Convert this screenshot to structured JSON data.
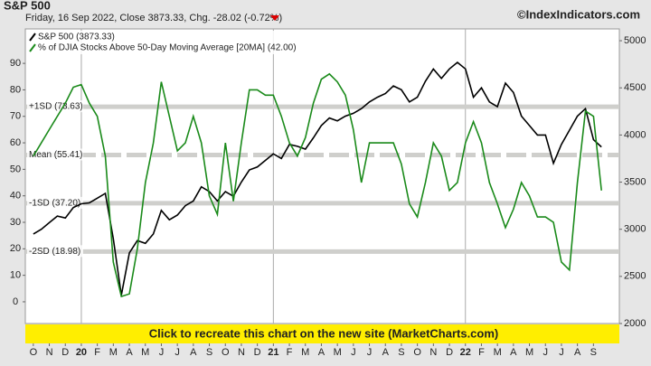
{
  "chart_data": {
    "type": "line",
    "title": "S&P 500",
    "subtitle": "Friday, 16 Sep 2022, Close 3873.33, Chg. -28.02 (-0.72%)",
    "credit": "©IndexIndicators.com",
    "banner": "Click to recreate this chart on the new site (MarketCharts.com)",
    "categories": [
      "O",
      null,
      "N",
      null,
      "D",
      null,
      "20",
      null,
      "F",
      null,
      "M",
      null,
      "A",
      null,
      "M",
      null,
      "J",
      null,
      "J",
      null,
      "A",
      null,
      "S",
      null,
      "O",
      null,
      "N",
      null,
      "D",
      null,
      "21",
      null,
      "F",
      null,
      "M",
      null,
      "A",
      null,
      "M",
      null,
      "J",
      null,
      "J",
      null,
      "A",
      null,
      "S",
      null,
      "O",
      null,
      "N",
      null,
      "D",
      null,
      "22",
      null,
      "F",
      null,
      "M",
      null,
      "A",
      null,
      "M",
      null,
      "J",
      null,
      "J",
      null,
      "A",
      null,
      "S",
      null
    ],
    "series": [
      {
        "name": "S&P 500 (3873.33)",
        "color": "#000000",
        "axis": "y2",
        "values": [
          2950,
          3000,
          3070,
          3140,
          3120,
          3230,
          3270,
          3280,
          3330,
          3380,
          2900,
          2300,
          2750,
          2880,
          2850,
          2950,
          3200,
          3100,
          3150,
          3250,
          3300,
          3450,
          3400,
          3300,
          3400,
          3350,
          3500,
          3630,
          3660,
          3730,
          3800,
          3750,
          3900,
          3880,
          3850,
          3970,
          4100,
          4180,
          4150,
          4200,
          4230,
          4280,
          4350,
          4400,
          4440,
          4520,
          4480,
          4350,
          4400,
          4570,
          4700,
          4600,
          4700,
          4770,
          4700,
          4400,
          4500,
          4350,
          4300,
          4550,
          4450,
          4200,
          4100,
          4000,
          4000,
          3700,
          3900,
          4050,
          4200,
          4280,
          3950,
          3873.33
        ]
      },
      {
        "name": "% of DJIA Stocks Above 50-Day Moving Average [20MA] (42.00)",
        "color": "#1a8a1a",
        "axis": "y",
        "values": [
          55,
          60,
          65,
          70,
          75,
          81,
          82,
          75,
          70,
          55,
          15,
          2,
          3,
          20,
          45,
          60,
          83,
          70,
          57,
          60,
          70,
          60,
          40,
          33,
          60,
          38,
          60,
          80,
          80,
          78,
          78,
          70,
          60,
          55,
          62,
          75,
          84,
          86,
          83,
          78,
          65,
          45,
          60,
          60,
          60,
          60,
          52,
          37,
          32,
          45,
          60,
          55,
          42,
          45,
          60,
          68,
          60,
          45,
          37,
          28,
          35,
          45,
          40,
          32,
          32,
          30,
          15,
          12,
          45,
          72,
          70,
          42
        ]
      }
    ],
    "ylim": [
      -8.2,
      103
    ],
    "yticks": [
      0,
      10,
      20,
      30,
      40,
      50,
      60,
      70,
      80,
      90
    ],
    "y2lim": [
      2000,
      5125
    ],
    "y2ticks": [
      2000,
      2500,
      3000,
      3500,
      4000,
      4500,
      5000
    ],
    "bands": [
      {
        "label": "+1SD (73.63)",
        "value": 73.63,
        "dashed": false
      },
      {
        "label": "Mean (55.41)",
        "value": 55.41,
        "dashed": true
      },
      {
        "label": "-1SD (37.20)",
        "value": 37.2,
        "dashed": false
      },
      {
        "label": "-2SD (18.98)",
        "value": 18.98,
        "dashed": false
      }
    ],
    "legend": "top-left"
  }
}
